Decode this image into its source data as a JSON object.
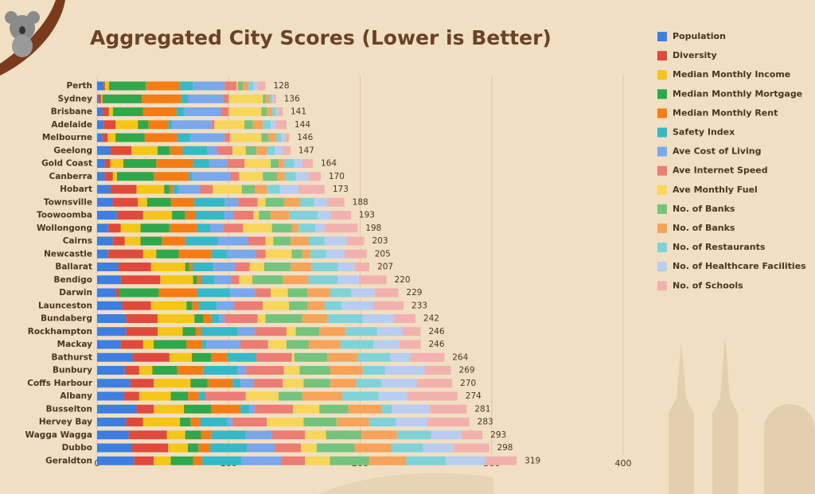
{
  "chart_data": {
    "type": "stacked-bar-horizontal",
    "title": "Aggregated City Scores (Lower is Better)",
    "categories": [
      "Perth",
      "Sydney",
      "Brisbane",
      "Adelaide",
      "Melbourne",
      "Geelong",
      "Gold Coast",
      "Canberra",
      "Hobart",
      "Townsville",
      "Toowoomba",
      "Wollongong",
      "Cairns",
      "Newcastle",
      "Ballarat",
      "Bendigo",
      "Darwin",
      "Launceston",
      "Bundaberg",
      "Rockhampton",
      "Mackay",
      "Bathurst",
      "Bunbury",
      "Coffs Harbour",
      "Albany",
      "Busselton",
      "Hervey Bay",
      "Wagga Wagga",
      "Dubbo",
      "Geraldton"
    ],
    "totals": [
      128,
      136,
      141,
      144,
      146,
      147,
      164,
      170,
      173,
      188,
      193,
      198,
      203,
      205,
      207,
      220,
      229,
      233,
      242,
      246,
      246,
      264,
      269,
      270,
      274,
      281,
      283,
      293,
      298,
      319
    ],
    "series": [
      {
        "name": "Population",
        "color": "#3d7fe0",
        "values": [
          5,
          1,
          4,
          5,
          4,
          10,
          6,
          6,
          10,
          12,
          15,
          8,
          12,
          8,
          16,
          18,
          14,
          19,
          22,
          22,
          18,
          27,
          21,
          25,
          20,
          30,
          22,
          24,
          26,
          28
        ]
      },
      {
        "name": "Diversity",
        "color": "#e04a3c",
        "values": [
          1,
          2,
          5,
          9,
          4,
          16,
          4,
          6,
          20,
          19,
          20,
          10,
          9,
          27,
          25,
          30,
          3,
          22,
          24,
          24,
          17,
          28,
          11,
          18,
          12,
          13,
          13,
          29,
          28,
          15
        ]
      },
      {
        "name": "Median Monthly Income",
        "color": "#f5c518",
        "values": [
          3,
          1,
          3,
          17,
          6,
          20,
          10,
          3,
          21,
          7,
          22,
          15,
          12,
          10,
          26,
          25,
          0,
          27,
          28,
          19,
          8,
          17,
          10,
          28,
          24,
          23,
          28,
          14,
          15,
          13
        ]
      },
      {
        "name": "Median Monthly Mortgage",
        "color": "#2ea84a",
        "values": [
          28,
          30,
          23,
          8,
          22,
          9,
          25,
          28,
          4,
          18,
          10,
          22,
          16,
          17,
          3,
          3,
          30,
          4,
          7,
          10,
          25,
          15,
          19,
          13,
          13,
          21,
          8,
          12,
          8,
          17
        ]
      },
      {
        "name": "Median Monthly Rent",
        "color": "#f57c14",
        "values": [
          26,
          30,
          25,
          15,
          25,
          10,
          28,
          27,
          3,
          18,
          8,
          21,
          18,
          25,
          2,
          3,
          29,
          5,
          6,
          4,
          12,
          12,
          20,
          19,
          8,
          22,
          7,
          8,
          9,
          7
        ]
      },
      {
        "name": "Safety Index",
        "color": "#35b8c8",
        "values": [
          10,
          5,
          6,
          3,
          10,
          19,
          12,
          2,
          4,
          23,
          22,
          10,
          25,
          12,
          16,
          10,
          25,
          14,
          6,
          28,
          3,
          22,
          26,
          6,
          5,
          7,
          21,
          26,
          28,
          30
        ]
      },
      {
        "name": "Ave Cost of Living",
        "color": "#7aa8ec",
        "values": [
          24,
          27,
          28,
          30,
          26,
          8,
          14,
          29,
          16,
          10,
          7,
          10,
          23,
          22,
          17,
          13,
          19,
          13,
          4,
          13,
          26,
          0,
          6,
          10,
          0,
          4,
          4,
          20,
          21,
          30
        ]
      },
      {
        "name": "Ave Internet Speed",
        "color": "#ec7c74",
        "values": [
          9,
          4,
          6,
          2,
          4,
          11,
          13,
          7,
          10,
          15,
          15,
          15,
          13,
          7,
          11,
          6,
          12,
          22,
          25,
          24,
          21,
          27,
          29,
          22,
          31,
          29,
          26,
          25,
          20,
          18
        ]
      },
      {
        "name": "Ave Monthly Fuel",
        "color": "#f7d65a",
        "values": [
          1,
          26,
          25,
          23,
          24,
          10,
          20,
          18,
          22,
          6,
          4,
          22,
          6,
          20,
          11,
          10,
          13,
          20,
          6,
          7,
          14,
          2,
          12,
          16,
          25,
          20,
          28,
          16,
          12,
          19
        ]
      },
      {
        "name": "No. of Banks",
        "color": "#74c47e",
        "values": [
          4,
          2,
          4,
          6,
          5,
          8,
          6,
          11,
          10,
          14,
          9,
          15,
          13,
          8,
          20,
          23,
          15,
          14,
          28,
          18,
          17,
          25,
          23,
          20,
          18,
          22,
          25,
          27,
          29,
          30
        ]
      },
      {
        "name": "No. of Banks",
        "color": "#f7a35a",
        "values": [
          4,
          3,
          4,
          8,
          6,
          8,
          4,
          6,
          9,
          12,
          14,
          5,
          14,
          6,
          16,
          20,
          17,
          13,
          19,
          20,
          24,
          23,
          25,
          20,
          30,
          25,
          25,
          27,
          28,
          28
        ]
      },
      {
        "name": "No. of Restaurants",
        "color": "#7fd3d8",
        "values": [
          4,
          2,
          3,
          6,
          4,
          6,
          8,
          8,
          10,
          11,
          22,
          13,
          12,
          12,
          20,
          22,
          16,
          13,
          27,
          24,
          25,
          25,
          17,
          19,
          28,
          8,
          20,
          26,
          24,
          30
        ]
      },
      {
        "name": "No. of Healthcare Facilities",
        "color": "#b9cdf2",
        "values": [
          3,
          1,
          2,
          4,
          3,
          6,
          6,
          10,
          14,
          10,
          10,
          7,
          17,
          14,
          13,
          16,
          18,
          24,
          24,
          19,
          20,
          15,
          30,
          27,
          22,
          29,
          24,
          23,
          23,
          30
        ]
      },
      {
        "name": "No. of Schools",
        "color": "#f2b1ae",
        "values": [
          6,
          2,
          3,
          8,
          3,
          6,
          8,
          9,
          20,
          13,
          15,
          25,
          13,
          17,
          11,
          21,
          18,
          23,
          16,
          14,
          16,
          26,
          20,
          27,
          38,
          28,
          32,
          16,
          27,
          24
        ]
      }
    ],
    "xlim": [
      0,
      400
    ],
    "xticks": [
      0,
      100,
      200,
      300,
      400
    ],
    "grid": true
  }
}
